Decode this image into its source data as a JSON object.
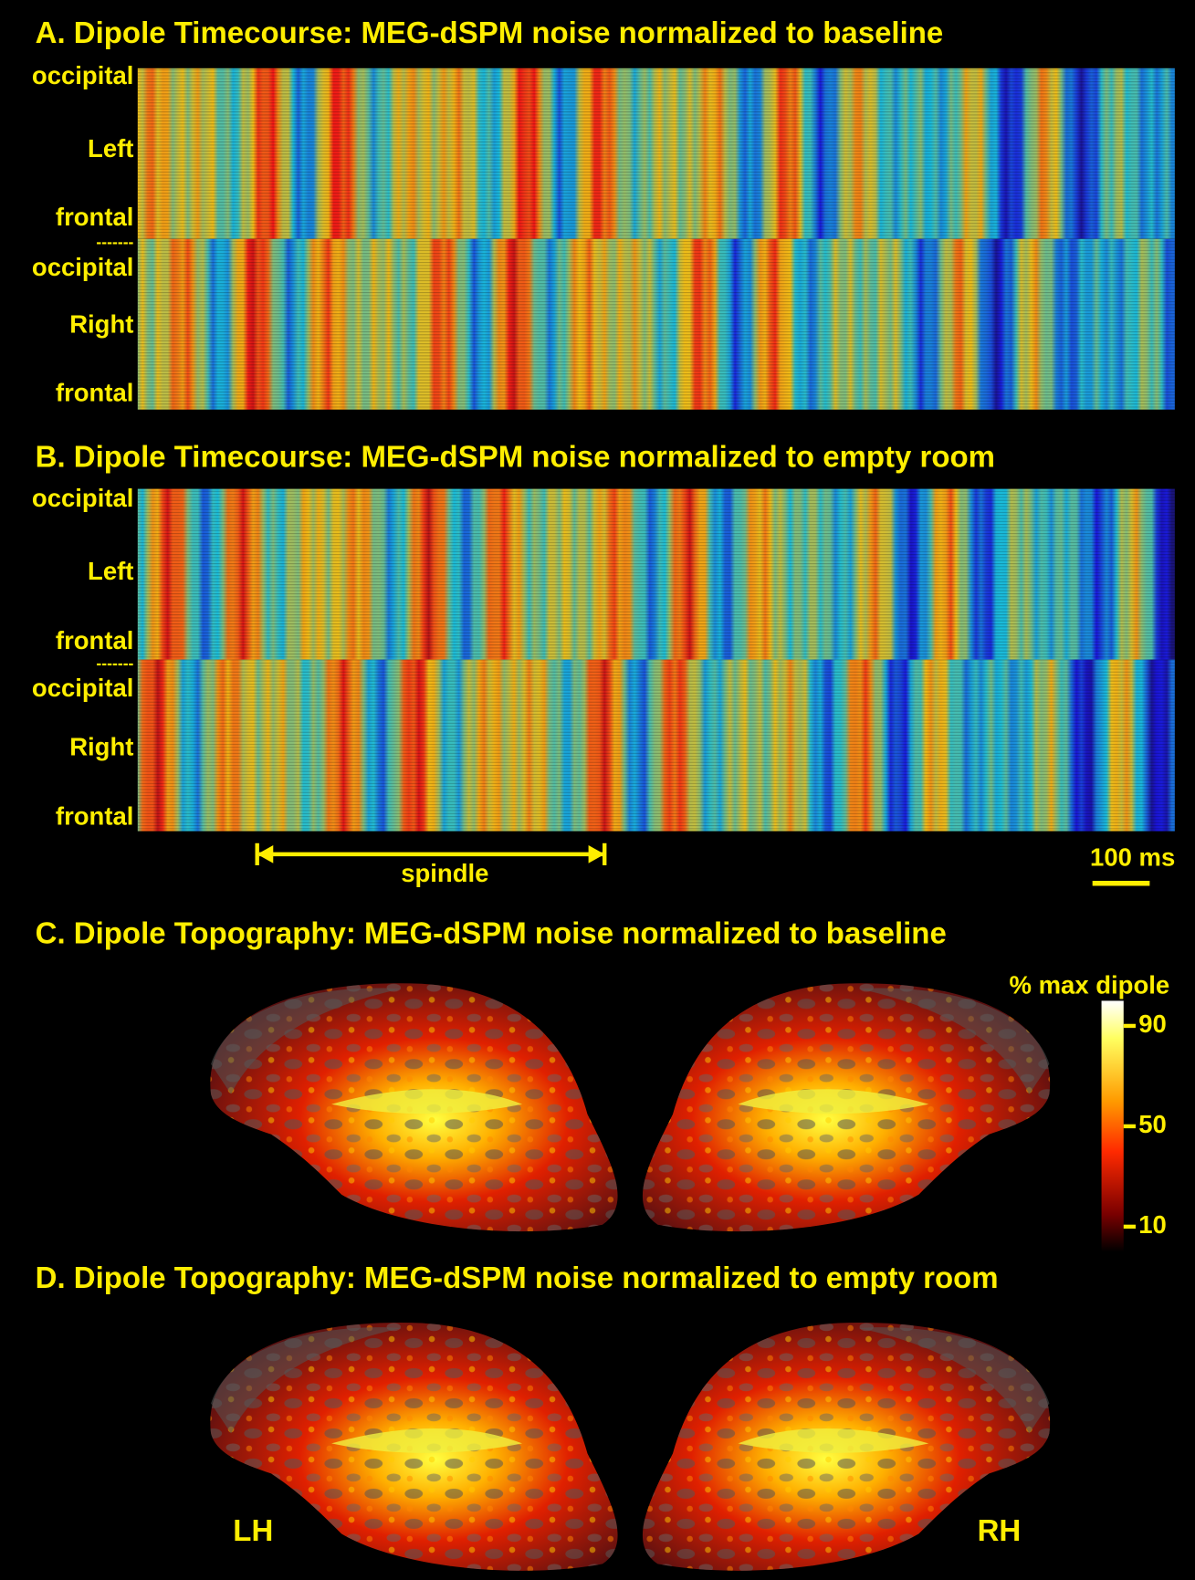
{
  "panels": [
    {
      "title": "A. Dipole Timecourse: MEG-dSPM noise normalized to baseline",
      "labels": [
        "occipital",
        "Left",
        "frontal",
        "-------",
        "occipital",
        "Right",
        "frontal"
      ]
    },
    {
      "title": "B. Dipole Timecourse: MEG-dSPM noise normalized to empty room",
      "labels": [
        "occipital",
        "Left",
        "frontal",
        "-------",
        "occipital",
        "Right",
        "frontal"
      ]
    },
    {
      "title": "C. Dipole Topography: MEG-dSPM noise normalized to baseline"
    },
    {
      "title": "D. Dipole Topography: MEG-dSPM noise normalized to empty room"
    }
  ],
  "annotations": {
    "spindle": "spindle",
    "scale_bar": "100 ms"
  },
  "colorbar": {
    "title": "% max dipole",
    "lim": [
      0,
      100
    ],
    "ticks": [
      10,
      50,
      90
    ]
  },
  "hemispheres": [
    "LH",
    "RH"
  ]
}
